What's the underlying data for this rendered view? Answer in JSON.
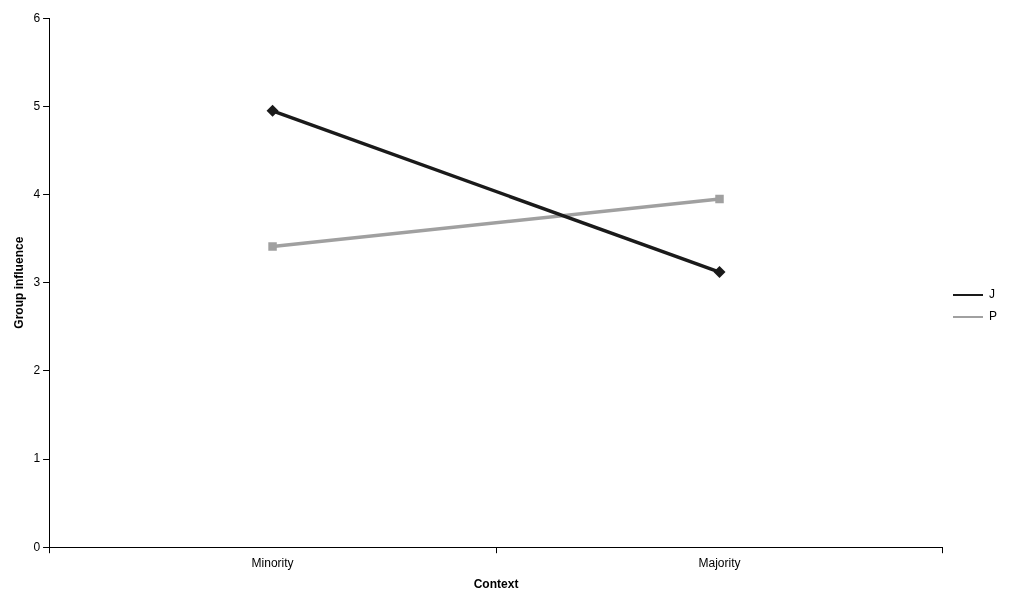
{
  "chart_data": {
    "type": "line",
    "xlabel": "Context",
    "ylabel": "Group influence",
    "categories": [
      "Minority",
      "Majority"
    ],
    "series": [
      {
        "name": "J",
        "color": "#1a1a1a",
        "values": [
          4.95,
          3.12
        ],
        "marker": "diamond"
      },
      {
        "name": "P",
        "color": "#a0a0a0",
        "values": [
          3.41,
          3.95
        ],
        "marker": "square"
      }
    ],
    "ylim": [
      0,
      6
    ],
    "yticks": [
      0,
      1,
      2,
      3,
      4,
      5,
      6
    ],
    "grid": false,
    "legend": "right",
    "line_style": "solid"
  }
}
